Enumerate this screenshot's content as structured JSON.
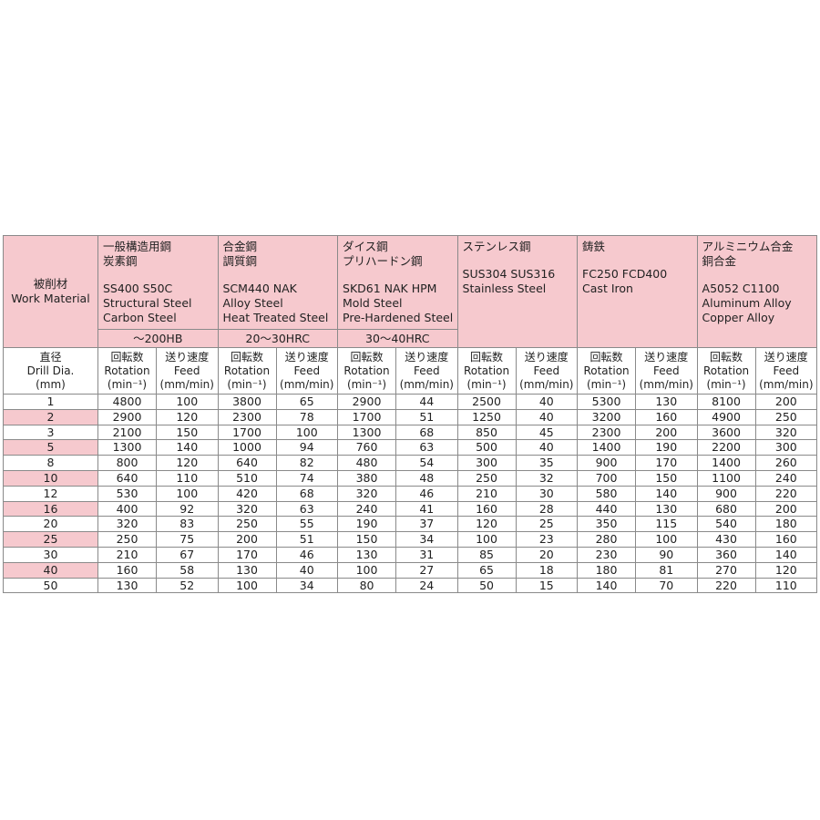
{
  "header": {
    "work_material_jp": "被削材",
    "work_material_en": "Work Material",
    "drill_dia_jp": "直径",
    "drill_dia_en": "Drill Dia.",
    "drill_dia_unit": "(mm)",
    "rotation_jp": "回転数",
    "rotation_en": "Rotation",
    "rotation_unit": "(min⁻¹)",
    "feed_jp": "送り速度",
    "feed_en": "Feed",
    "feed_unit": "(mm/min)"
  },
  "materials": [
    {
      "jp": [
        "一般構造用鋼",
        "炭素鋼"
      ],
      "grades": "SS400 S50C",
      "en": [
        "Structural Steel",
        "Carbon Steel"
      ],
      "hardness": "～200HB"
    },
    {
      "jp": [
        "合金鋼",
        "調質鋼"
      ],
      "grades": "SCM440 NAK",
      "en": [
        "Alloy Steel",
        "Heat Treated Steel"
      ],
      "hardness": "20～30HRC"
    },
    {
      "jp": [
        "ダイス鋼",
        "プリハードン鋼"
      ],
      "grades": "SKD61 NAK HPM",
      "en": [
        "Mold Steel",
        "Pre-Hardened Steel"
      ],
      "hardness": "30～40HRC"
    },
    {
      "jp": [
        "ステンレス鋼"
      ],
      "grades": "SUS304 SUS316",
      "en": [
        "Stainless Steel"
      ]
    },
    {
      "jp": [
        "鋳鉄"
      ],
      "grades": "FC250  FCD400",
      "en": [
        "Cast Iron"
      ]
    },
    {
      "jp": [
        "アルミニウム合金",
        "銅合金"
      ],
      "grades": "A5052 C1100",
      "en": [
        "Aluminum Alloy",
        "Copper Alloy"
      ]
    }
  ],
  "rows": [
    [
      1,
      4800,
      100,
      3800,
      65,
      2900,
      44,
      2500,
      40,
      5300,
      130,
      8100,
      200
    ],
    [
      2,
      2900,
      120,
      2300,
      78,
      1700,
      51,
      1250,
      40,
      3200,
      160,
      4900,
      250
    ],
    [
      3,
      2100,
      150,
      1700,
      100,
      1300,
      68,
      850,
      45,
      2300,
      200,
      3600,
      320
    ],
    [
      5,
      1300,
      140,
      1000,
      94,
      760,
      63,
      500,
      40,
      1400,
      190,
      2200,
      300
    ],
    [
      8,
      800,
      120,
      640,
      82,
      480,
      54,
      300,
      35,
      900,
      170,
      1400,
      260
    ],
    [
      10,
      640,
      110,
      510,
      74,
      380,
      48,
      250,
      32,
      700,
      150,
      1100,
      240
    ],
    [
      12,
      530,
      100,
      420,
      68,
      320,
      46,
      210,
      30,
      580,
      140,
      900,
      220
    ],
    [
      16,
      400,
      92,
      320,
      63,
      240,
      41,
      160,
      28,
      440,
      130,
      680,
      200
    ],
    [
      20,
      320,
      83,
      250,
      55,
      190,
      37,
      120,
      25,
      350,
      115,
      540,
      180
    ],
    [
      25,
      250,
      75,
      200,
      51,
      150,
      34,
      100,
      23,
      280,
      100,
      430,
      160
    ],
    [
      30,
      210,
      67,
      170,
      46,
      130,
      31,
      85,
      20,
      230,
      90,
      360,
      140
    ],
    [
      40,
      160,
      58,
      130,
      40,
      100,
      27,
      65,
      18,
      180,
      81,
      270,
      120
    ],
    [
      50,
      130,
      52,
      100,
      34,
      80,
      24,
      50,
      15,
      140,
      70,
      220,
      110
    ]
  ]
}
